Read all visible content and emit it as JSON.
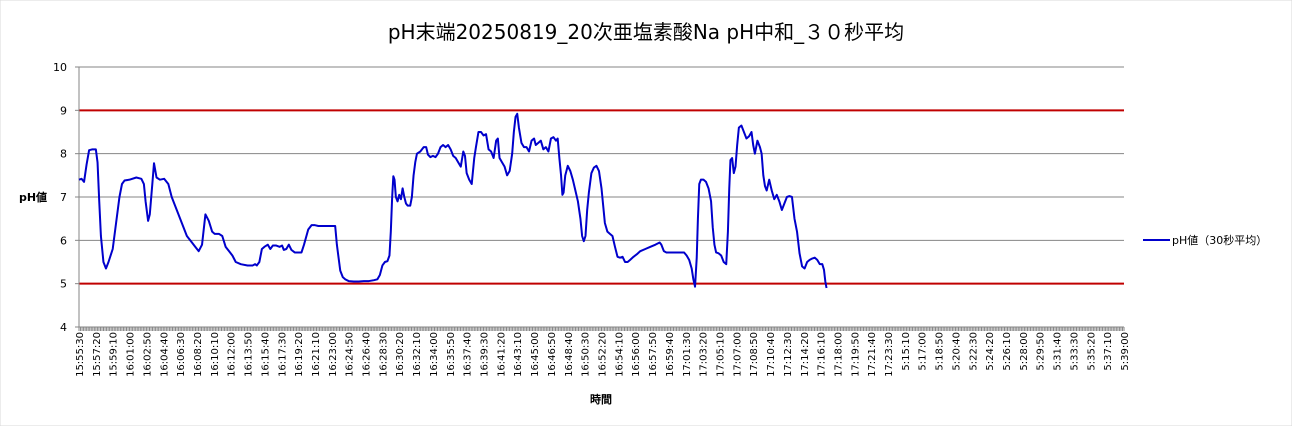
{
  "chart_data": {
    "type": "line",
    "title": "pH末端20250819_20次亜塩素酸Na pH中和_３０秒平均",
    "xlabel": "時間",
    "ylabel": "pH値",
    "ylim": [
      4,
      10
    ],
    "y_ticks": [
      4,
      5,
      6,
      7,
      8,
      9,
      10
    ],
    "grid": true,
    "legend_position": "right",
    "x_tick_labels": [
      "15:55:30",
      "15:57:20",
      "15:59:10",
      "16:01:00",
      "16:02:50",
      "16:04:40",
      "16:06:30",
      "16:08:20",
      "16:10:10",
      "16:12:00",
      "16:13:50",
      "16:15:40",
      "16:17:30",
      "16:19:20",
      "16:21:10",
      "16:23:00",
      "16:24:50",
      "16:26:40",
      "16:28:30",
      "16:30:20",
      "16:32:10",
      "16:34:00",
      "16:35:50",
      "16:37:40",
      "16:39:30",
      "16:41:20",
      "16:43:10",
      "16:45:00",
      "16:46:50",
      "16:48:40",
      "16:50:30",
      "16:52:20",
      "16:54:10",
      "16:56:00",
      "16:57:50",
      "16:59:40",
      "17:01:30",
      "17:03:20",
      "17:05:10",
      "17:07:00",
      "17:08:50",
      "17:10:40",
      "17:12:30",
      "17:14:20",
      "17:16:10",
      "17:18:00",
      "17:19:50",
      "17:21:40",
      "17:23:30",
      "5:15:10",
      "5:17:00",
      "5:18:50",
      "5:20:40",
      "5:22:30",
      "5:24:20",
      "5:26:10",
      "5:28:00",
      "5:29:50",
      "5:31:40",
      "5:33:30",
      "5:35:20",
      "5:37:10",
      "5:39:00"
    ],
    "reference_lines": [
      {
        "y": 9,
        "color": "#c00000"
      },
      {
        "y": 5,
        "color": "#c00000"
      }
    ],
    "series": [
      {
        "name": "pH値（30秒平均）",
        "color": "#0000cc",
        "values": [
          [
            0,
            7.4
          ],
          [
            0.15,
            7.42
          ],
          [
            0.3,
            7.35
          ],
          [
            0.45,
            7.75
          ],
          [
            0.6,
            8.08
          ],
          [
            0.8,
            8.1
          ],
          [
            1.0,
            8.1
          ],
          [
            1.1,
            7.8
          ],
          [
            1.2,
            6.9
          ],
          [
            1.3,
            6.1
          ],
          [
            1.45,
            5.5
          ],
          [
            1.6,
            5.35
          ],
          [
            1.75,
            5.5
          ],
          [
            2.0,
            5.8
          ],
          [
            2.2,
            6.4
          ],
          [
            2.4,
            7.0
          ],
          [
            2.55,
            7.3
          ],
          [
            2.7,
            7.38
          ],
          [
            3.0,
            7.4
          ],
          [
            3.4,
            7.45
          ],
          [
            3.7,
            7.42
          ],
          [
            3.85,
            7.3
          ],
          [
            3.95,
            6.9
          ],
          [
            4.1,
            6.45
          ],
          [
            4.2,
            6.6
          ],
          [
            4.35,
            7.3
          ],
          [
            4.45,
            7.78
          ],
          [
            4.6,
            7.45
          ],
          [
            4.8,
            7.4
          ],
          [
            5.05,
            7.42
          ],
          [
            5.3,
            7.3
          ],
          [
            5.5,
            7.0
          ],
          [
            5.8,
            6.7
          ],
          [
            6.1,
            6.4
          ],
          [
            6.4,
            6.1
          ],
          [
            6.7,
            5.95
          ],
          [
            6.9,
            5.85
          ],
          [
            7.1,
            5.75
          ],
          [
            7.3,
            5.9
          ],
          [
            7.5,
            6.6
          ],
          [
            7.7,
            6.45
          ],
          [
            7.9,
            6.2
          ],
          [
            8.05,
            6.15
          ],
          [
            8.3,
            6.15
          ],
          [
            8.5,
            6.1
          ],
          [
            8.7,
            5.85
          ],
          [
            8.9,
            5.75
          ],
          [
            9.1,
            5.65
          ],
          [
            9.3,
            5.5
          ],
          [
            9.6,
            5.45
          ],
          [
            10.0,
            5.42
          ],
          [
            10.3,
            5.42
          ],
          [
            10.45,
            5.45
          ],
          [
            10.55,
            5.42
          ],
          [
            10.7,
            5.5
          ],
          [
            10.85,
            5.8
          ],
          [
            11.0,
            5.85
          ],
          [
            11.2,
            5.9
          ],
          [
            11.35,
            5.8
          ],
          [
            11.5,
            5.88
          ],
          [
            11.7,
            5.88
          ],
          [
            11.9,
            5.85
          ],
          [
            12.05,
            5.88
          ],
          [
            12.15,
            5.78
          ],
          [
            12.3,
            5.8
          ],
          [
            12.45,
            5.9
          ],
          [
            12.6,
            5.78
          ],
          [
            12.8,
            5.72
          ],
          [
            13.0,
            5.72
          ],
          [
            13.2,
            5.72
          ],
          [
            13.35,
            5.9
          ],
          [
            13.6,
            6.25
          ],
          [
            13.8,
            6.35
          ],
          [
            14.0,
            6.35
          ],
          [
            14.2,
            6.33
          ],
          [
            14.4,
            6.33
          ],
          [
            14.6,
            6.33
          ],
          [
            15.0,
            6.33
          ],
          [
            15.2,
            6.33
          ],
          [
            15.3,
            5.9
          ],
          [
            15.4,
            5.6
          ],
          [
            15.5,
            5.3
          ],
          [
            15.65,
            5.15
          ],
          [
            15.8,
            5.1
          ],
          [
            16.0,
            5.06
          ],
          [
            16.3,
            5.05
          ],
          [
            16.6,
            5.05
          ],
          [
            16.9,
            5.06
          ],
          [
            17.2,
            5.06
          ],
          [
            17.5,
            5.08
          ],
          [
            17.7,
            5.1
          ],
          [
            17.85,
            5.2
          ],
          [
            18.0,
            5.42
          ],
          [
            18.15,
            5.5
          ],
          [
            18.3,
            5.52
          ],
          [
            18.42,
            5.65
          ],
          [
            18.5,
            6.2
          ],
          [
            18.58,
            7.0
          ],
          [
            18.65,
            7.48
          ],
          [
            18.72,
            7.4
          ],
          [
            18.8,
            7.0
          ],
          [
            18.9,
            6.9
          ],
          [
            19.0,
            7.05
          ],
          [
            19.1,
            6.95
          ],
          [
            19.2,
            7.2
          ],
          [
            19.3,
            7.0
          ],
          [
            19.4,
            6.85
          ],
          [
            19.5,
            6.8
          ],
          [
            19.65,
            6.8
          ],
          [
            19.75,
            7.0
          ],
          [
            19.85,
            7.5
          ],
          [
            19.95,
            7.8
          ],
          [
            20.05,
            8.0
          ],
          [
            20.25,
            8.05
          ],
          [
            20.45,
            8.15
          ],
          [
            20.6,
            8.15
          ],
          [
            20.7,
            7.98
          ],
          [
            20.85,
            7.92
          ],
          [
            21.0,
            7.95
          ],
          [
            21.15,
            7.92
          ],
          [
            21.3,
            8.0
          ],
          [
            21.45,
            8.15
          ],
          [
            21.6,
            8.2
          ],
          [
            21.75,
            8.15
          ],
          [
            21.9,
            8.2
          ],
          [
            22.05,
            8.1
          ],
          [
            22.2,
            7.95
          ],
          [
            22.35,
            7.9
          ],
          [
            22.5,
            7.8
          ],
          [
            22.65,
            7.7
          ],
          [
            22.8,
            8.05
          ],
          [
            22.9,
            7.95
          ],
          [
            23.0,
            7.55
          ],
          [
            23.15,
            7.4
          ],
          [
            23.3,
            7.3
          ],
          [
            23.45,
            7.9
          ],
          [
            23.55,
            8.15
          ],
          [
            23.7,
            8.5
          ],
          [
            23.85,
            8.5
          ],
          [
            24.0,
            8.42
          ],
          [
            24.15,
            8.45
          ],
          [
            24.3,
            8.1
          ],
          [
            24.45,
            8.05
          ],
          [
            24.6,
            7.9
          ],
          [
            24.75,
            8.3
          ],
          [
            24.85,
            8.35
          ],
          [
            24.95,
            7.9
          ],
          [
            25.1,
            7.8
          ],
          [
            25.25,
            7.7
          ],
          [
            25.4,
            7.5
          ],
          [
            25.55,
            7.6
          ],
          [
            25.7,
            8.0
          ],
          [
            25.8,
            8.5
          ],
          [
            25.9,
            8.85
          ],
          [
            26.0,
            8.92
          ],
          [
            26.1,
            8.6
          ],
          [
            26.25,
            8.25
          ],
          [
            26.4,
            8.15
          ],
          [
            26.55,
            8.15
          ],
          [
            26.7,
            8.05
          ],
          [
            26.85,
            8.3
          ],
          [
            27.0,
            8.35
          ],
          [
            27.1,
            8.2
          ],
          [
            27.25,
            8.25
          ],
          [
            27.4,
            8.3
          ],
          [
            27.55,
            8.1
          ],
          [
            27.7,
            8.15
          ],
          [
            27.85,
            8.05
          ],
          [
            28.0,
            8.35
          ],
          [
            28.15,
            8.38
          ],
          [
            28.3,
            8.3
          ],
          [
            28.4,
            8.35
          ],
          [
            28.5,
            7.9
          ],
          [
            28.6,
            7.5
          ],
          [
            28.68,
            7.05
          ],
          [
            28.75,
            7.1
          ],
          [
            28.85,
            7.5
          ],
          [
            29.0,
            7.72
          ],
          [
            29.15,
            7.6
          ],
          [
            29.3,
            7.4
          ],
          [
            29.45,
            7.15
          ],
          [
            29.6,
            6.9
          ],
          [
            29.75,
            6.5
          ],
          [
            29.85,
            6.1
          ],
          [
            29.95,
            5.98
          ],
          [
            30.05,
            6.1
          ],
          [
            30.15,
            6.7
          ],
          [
            30.25,
            7.1
          ],
          [
            30.4,
            7.55
          ],
          [
            30.55,
            7.68
          ],
          [
            30.7,
            7.72
          ],
          [
            30.85,
            7.6
          ],
          [
            31.0,
            7.2
          ],
          [
            31.1,
            6.8
          ],
          [
            31.2,
            6.4
          ],
          [
            31.35,
            6.2
          ],
          [
            31.5,
            6.15
          ],
          [
            31.65,
            6.1
          ],
          [
            31.8,
            5.85
          ],
          [
            31.95,
            5.62
          ],
          [
            32.1,
            5.6
          ],
          [
            32.25,
            5.62
          ],
          [
            32.4,
            5.5
          ],
          [
            32.55,
            5.5
          ],
          [
            32.7,
            5.55
          ],
          [
            32.9,
            5.62
          ],
          [
            33.1,
            5.68
          ],
          [
            33.3,
            5.75
          ],
          [
            33.6,
            5.8
          ],
          [
            33.9,
            5.85
          ],
          [
            34.2,
            5.9
          ],
          [
            34.45,
            5.95
          ],
          [
            34.55,
            5.9
          ],
          [
            34.7,
            5.75
          ],
          [
            34.85,
            5.72
          ],
          [
            35.0,
            5.72
          ],
          [
            35.3,
            5.72
          ],
          [
            35.6,
            5.72
          ],
          [
            35.9,
            5.72
          ],
          [
            36.05,
            5.65
          ],
          [
            36.2,
            5.55
          ],
          [
            36.35,
            5.35
          ],
          [
            36.45,
            5.1
          ],
          [
            36.55,
            4.93
          ],
          [
            36.65,
            5.6
          ],
          [
            36.72,
            6.5
          ],
          [
            36.8,
            7.3
          ],
          [
            36.9,
            7.4
          ],
          [
            37.05,
            7.4
          ],
          [
            37.2,
            7.35
          ],
          [
            37.35,
            7.2
          ],
          [
            37.5,
            6.9
          ],
          [
            37.6,
            6.3
          ],
          [
            37.7,
            5.9
          ],
          [
            37.8,
            5.72
          ],
          [
            37.95,
            5.7
          ],
          [
            38.1,
            5.65
          ],
          [
            38.25,
            5.5
          ],
          [
            38.4,
            5.45
          ],
          [
            38.5,
            6.2
          ],
          [
            38.58,
            7.2
          ],
          [
            38.65,
            7.85
          ],
          [
            38.75,
            7.9
          ],
          [
            38.85,
            7.55
          ],
          [
            38.95,
            7.7
          ],
          [
            39.05,
            8.2
          ],
          [
            39.15,
            8.6
          ],
          [
            39.3,
            8.65
          ],
          [
            39.45,
            8.5
          ],
          [
            39.6,
            8.35
          ],
          [
            39.75,
            8.4
          ],
          [
            39.9,
            8.5
          ],
          [
            40.0,
            8.2
          ],
          [
            40.1,
            8.0
          ],
          [
            40.25,
            8.3
          ],
          [
            40.4,
            8.15
          ],
          [
            40.5,
            8.0
          ],
          [
            40.6,
            7.5
          ],
          [
            40.7,
            7.25
          ],
          [
            40.8,
            7.15
          ],
          [
            40.95,
            7.4
          ],
          [
            41.1,
            7.15
          ],
          [
            41.25,
            6.95
          ],
          [
            41.4,
            7.05
          ],
          [
            41.55,
            6.9
          ],
          [
            41.7,
            6.7
          ],
          [
            41.85,
            6.85
          ],
          [
            42.0,
            7.0
          ],
          [
            42.15,
            7.02
          ],
          [
            42.3,
            7.0
          ],
          [
            42.45,
            6.5
          ],
          [
            42.6,
            6.2
          ],
          [
            42.75,
            5.7
          ],
          [
            42.9,
            5.4
          ],
          [
            43.05,
            5.35
          ],
          [
            43.2,
            5.5
          ],
          [
            43.35,
            5.55
          ],
          [
            43.5,
            5.58
          ],
          [
            43.65,
            5.6
          ],
          [
            43.8,
            5.55
          ],
          [
            43.95,
            5.45
          ],
          [
            44.1,
            5.45
          ],
          [
            44.2,
            5.32
          ],
          [
            44.28,
            5.05
          ],
          [
            44.35,
            4.9
          ]
        ]
      }
    ]
  }
}
